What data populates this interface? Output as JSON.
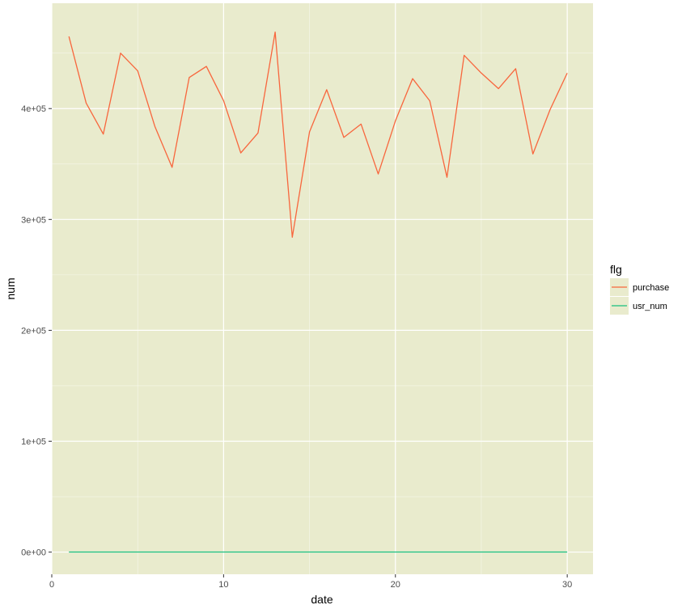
{
  "chart_data": {
    "type": "line",
    "xlabel": "date",
    "ylabel": "num",
    "xlim": [
      0,
      31.5
    ],
    "ylim": [
      -20000,
      495000
    ],
    "x_ticks": [
      0,
      10,
      20,
      30
    ],
    "x_tick_labels": [
      "0",
      "10",
      "20",
      "30"
    ],
    "y_ticks": [
      0,
      100000,
      200000,
      300000,
      400000
    ],
    "y_tick_labels": [
      "0e+00",
      "1e+05",
      "2e+05",
      "3e+05",
      "4e+05"
    ],
    "grid": true,
    "legend": {
      "title": "flg",
      "placement": "right"
    },
    "panel_background": "#e9ebcd",
    "grid_color": "#ffffff",
    "x": [
      1,
      2,
      3,
      4,
      5,
      6,
      7,
      8,
      9,
      10,
      11,
      12,
      13,
      14,
      15,
      16,
      17,
      18,
      19,
      20,
      21,
      22,
      23,
      24,
      25,
      26,
      27,
      28,
      29,
      30
    ],
    "series": [
      {
        "name": "purchase",
        "color": "#f8663d",
        "values": [
          465000,
          405000,
          377000,
          450000,
          434000,
          384000,
          347000,
          428000,
          438000,
          407000,
          360000,
          378000,
          469000,
          284000,
          379000,
          417000,
          374000,
          386000,
          341000,
          389000,
          427000,
          407000,
          338000,
          448000,
          432000,
          418000,
          436000,
          359000,
          399000,
          432000
        ]
      },
      {
        "name": "usr_num",
        "color": "#19bf80",
        "values": [
          90,
          95,
          88,
          92,
          91,
          89,
          87,
          93,
          94,
          90,
          88,
          89,
          96,
          85,
          88,
          92,
          89,
          90,
          87,
          91,
          93,
          92,
          86,
          94,
          93,
          92,
          93,
          88,
          90,
          92
        ]
      }
    ]
  }
}
